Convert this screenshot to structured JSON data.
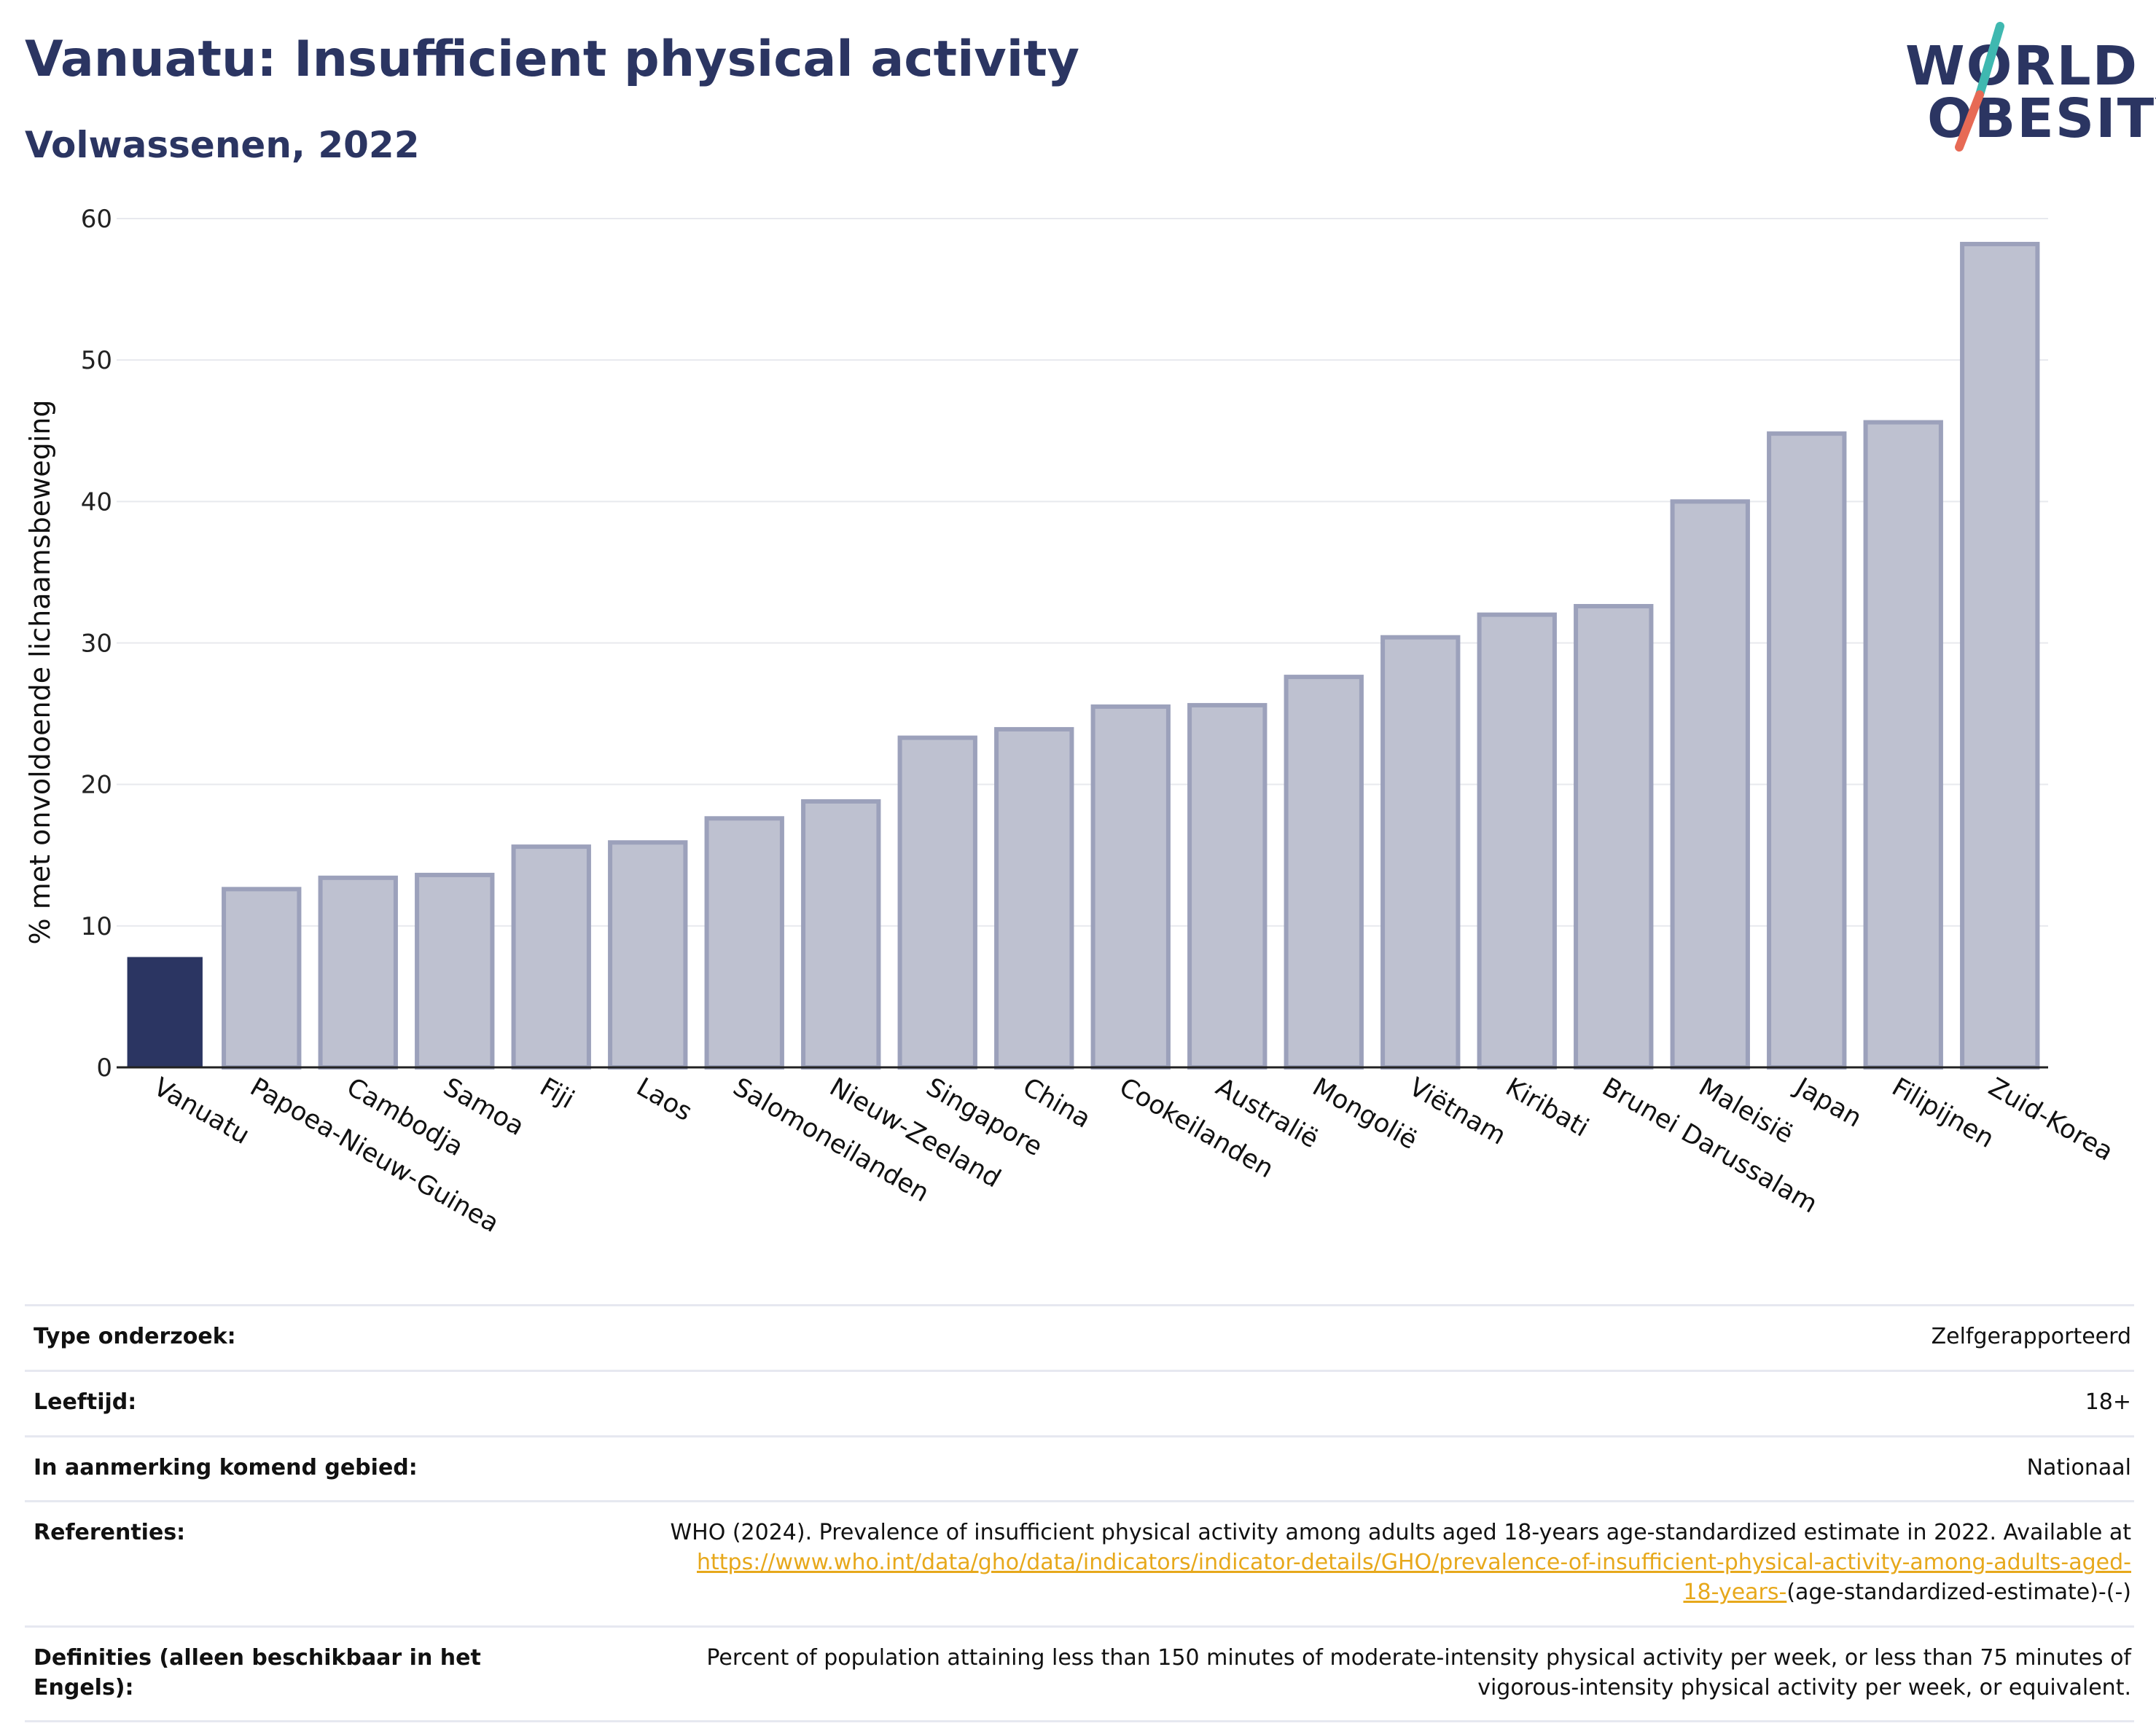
{
  "header": {
    "title": "Vanuatu: Insufficient physical activity",
    "subtitle": "Volwassenen, 2022"
  },
  "logo": {
    "line1": "WORLD",
    "line2": "OBESITY",
    "colors": {
      "text": "#2b3562",
      "slash_top": "#3fb8b0",
      "slash_bottom": "#e76a55"
    }
  },
  "chart_data": {
    "type": "bar",
    "title": "Vanuatu: Insufficient physical activity",
    "subtitle": "Volwassenen, 2022",
    "xlabel": "",
    "ylabel": "% met onvoldoende lichaamsbeweging",
    "ylim": [
      0,
      60
    ],
    "yticks": [
      0,
      10,
      20,
      30,
      40,
      50,
      60
    ],
    "grid": true,
    "highlight": "Vanuatu",
    "colors": {
      "highlight": "#2b3562",
      "other": "#bec1d0",
      "other_border": "#9ca1bb"
    },
    "categories": [
      "Vanuatu",
      "Papoea-Nieuw-Guinea",
      "Cambodja",
      "Samoa",
      "Fiji",
      "Laos",
      "Salomoneilanden",
      "Nieuw-Zeeland",
      "Singapore",
      "China",
      "Cookeilanden",
      "Australië",
      "Mongolië",
      "Viëtnam",
      "Kiribati",
      "Brunei Darussalam",
      "Maleisië",
      "Japan",
      "Filipijnen",
      "Zuid-Korea"
    ],
    "values": [
      7.8,
      12.6,
      13.4,
      13.6,
      15.6,
      15.9,
      17.6,
      18.8,
      23.3,
      23.9,
      25.5,
      25.6,
      27.6,
      30.4,
      32.0,
      32.6,
      40.0,
      44.8,
      45.6,
      58.2
    ]
  },
  "table": {
    "rows": [
      {
        "key": "Type onderzoek:",
        "value": "Zelfgerapporteerd"
      },
      {
        "key": "Leeftijd:",
        "value": "18+"
      },
      {
        "key": "In aanmerking komend gebied:",
        "value": "Nationaal"
      }
    ],
    "references": {
      "key": "Referenties:",
      "text": "WHO (2024). Prevalence of insufficient physical activity among adults aged 18-years age-standardized estimate in 2022. Available at",
      "link_a": "https://www.who.int/data/gho/data/indicators/indicator-details/GHO/prevalence-of-insufficient-physical-activity-among-adults-aged-",
      "link_b": "18-years-",
      "tail": "(age-standardized-estimate)-(-)"
    },
    "definitions": {
      "key": "Definities (alleen beschikbaar in het Engels):",
      "line1": "Percent of population attaining less than 150 minutes of moderate-intensity physical activity per week, or less than 75 minutes of",
      "line2": "vigorous-intensity physical activity per week, or equivalent."
    }
  }
}
